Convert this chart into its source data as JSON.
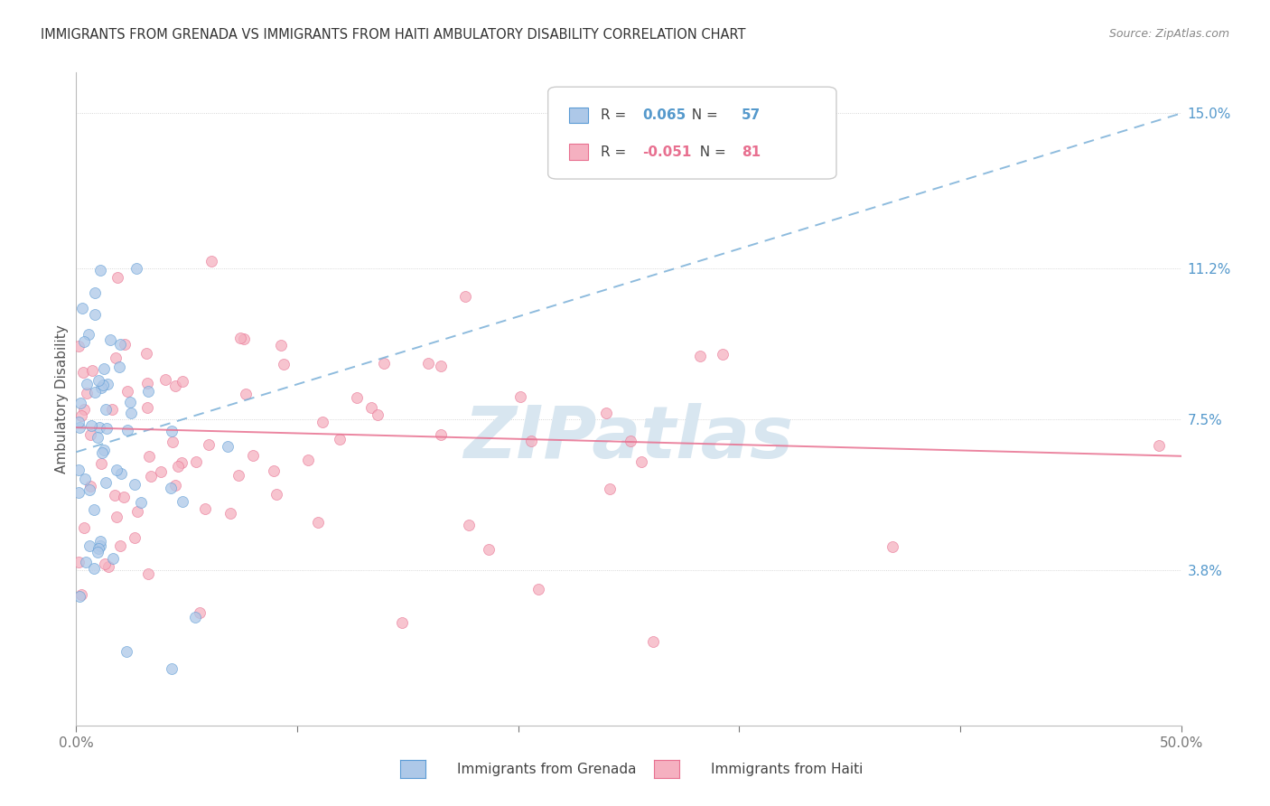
{
  "title": "IMMIGRANTS FROM GRENADA VS IMMIGRANTS FROM HAITI AMBULATORY DISABILITY CORRELATION CHART",
  "source": "Source: ZipAtlas.com",
  "ylabel": "Ambulatory Disability",
  "x_min": 0.0,
  "x_max": 0.5,
  "y_min": 0.0,
  "y_max": 0.16,
  "y_tick_labels_right": [
    "15.0%",
    "11.2%",
    "7.5%",
    "3.8%"
  ],
  "y_tick_vals_right": [
    0.15,
    0.112,
    0.075,
    0.038
  ],
  "grenada_color": "#adc8e8",
  "grenada_edge_color": "#5b9bd5",
  "haiti_color": "#f5b0c0",
  "haiti_edge_color": "#e87090",
  "grenada_R": "0.065",
  "grenada_N": "57",
  "haiti_R": "-0.051",
  "haiti_N": "81",
  "trend_grenada_color": "#7ab0d8",
  "trend_haiti_color": "#e87090",
  "watermark_color": "#d8e6f0",
  "background_color": "#ffffff",
  "scatter_alpha": 0.75,
  "scatter_size": 75,
  "legend_box_color": "#f8f8f8",
  "legend_border_color": "#cccccc",
  "right_axis_color": "#5599cc",
  "grenada_label": "Immigrants from Grenada",
  "haiti_label": "Immigrants from Haiti"
}
